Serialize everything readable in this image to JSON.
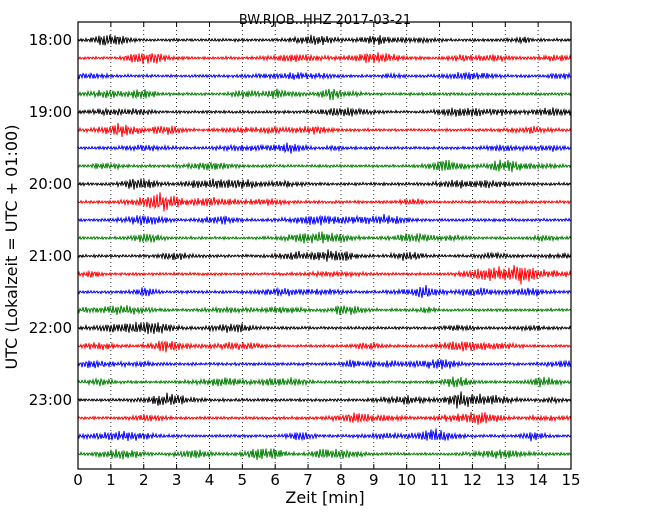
{
  "chart_data": {
    "type": "line",
    "title": "BW.RJOB..HHZ 2017-03-21",
    "xlabel": "Zeit  [min]",
    "ylabel": "UTC (Lokalzeit = UTC + 01:00)",
    "xlim": [
      0,
      15
    ],
    "x_ticks": [
      "0",
      "1",
      "2",
      "3",
      "4",
      "5",
      "6",
      "7",
      "8",
      "9",
      "10",
      "11",
      "12",
      "13",
      "14",
      "15"
    ],
    "y_ticks": [
      "18:00",
      "19:00",
      "20:00",
      "21:00",
      "22:00",
      "23:00"
    ],
    "grid": "vertical dotted at each minute",
    "trace_colors": [
      "#000000",
      "#ff0000",
      "#0000ff",
      "#007f00"
    ],
    "traces": [
      {
        "start": "18:00",
        "color": "#000000"
      },
      {
        "start": "18:15",
        "color": "#ff0000"
      },
      {
        "start": "18:30",
        "color": "#0000ff"
      },
      {
        "start": "18:45",
        "color": "#007f00"
      },
      {
        "start": "19:00",
        "color": "#000000"
      },
      {
        "start": "19:15",
        "color": "#ff0000"
      },
      {
        "start": "19:30",
        "color": "#0000ff"
      },
      {
        "start": "19:45",
        "color": "#007f00"
      },
      {
        "start": "20:00",
        "color": "#000000"
      },
      {
        "start": "20:15",
        "color": "#ff0000"
      },
      {
        "start": "20:30",
        "color": "#0000ff"
      },
      {
        "start": "20:45",
        "color": "#007f00"
      },
      {
        "start": "21:00",
        "color": "#000000"
      },
      {
        "start": "21:15",
        "color": "#ff0000"
      },
      {
        "start": "21:30",
        "color": "#0000ff"
      },
      {
        "start": "21:45",
        "color": "#007f00"
      },
      {
        "start": "22:00",
        "color": "#000000"
      },
      {
        "start": "22:15",
        "color": "#ff0000"
      },
      {
        "start": "22:30",
        "color": "#0000ff"
      },
      {
        "start": "22:45",
        "color": "#007f00"
      },
      {
        "start": "23:00",
        "color": "#000000"
      },
      {
        "start": "23:15",
        "color": "#ff0000"
      },
      {
        "start": "23:30",
        "color": "#0000ff"
      },
      {
        "start": "23:45",
        "color": "#007f00"
      }
    ]
  }
}
